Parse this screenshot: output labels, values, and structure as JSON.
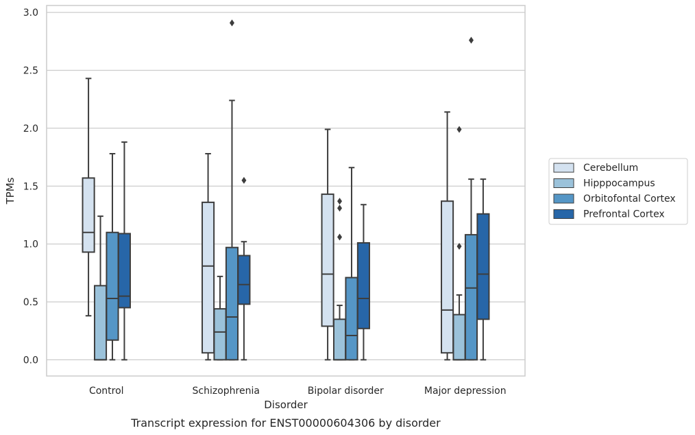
{
  "chart_data": {
    "type": "box",
    "title": "",
    "caption": "Transcript expression for ENST00000604306 by disorder",
    "xlabel": "Disorder",
    "ylabel": "TPMs",
    "ylim": [
      -0.14,
      3.06
    ],
    "yticks": [
      0.0,
      0.5,
      1.0,
      1.5,
      2.0,
      2.5,
      3.0
    ],
    "ytick_labels": [
      "0.0",
      "0.5",
      "1.0",
      "1.5",
      "2.0",
      "2.5",
      "3.0"
    ],
    "grid": "horizontal",
    "legend_position": "right",
    "categories": [
      "Control",
      "Schizophrenia",
      "Bipolar disorder",
      "Major depression"
    ],
    "series": [
      {
        "name": "Cerebellum",
        "color": "#d4e2f0",
        "boxes": [
          {
            "whislo": 0.38,
            "q1": 0.93,
            "med": 1.1,
            "q3": 1.57,
            "whishi": 2.43,
            "fliers": []
          },
          {
            "whislo": 0.0,
            "q1": 0.06,
            "med": 0.81,
            "q3": 1.36,
            "whishi": 1.78,
            "fliers": []
          },
          {
            "whislo": 0.0,
            "q1": 0.29,
            "med": 0.74,
            "q3": 1.43,
            "whishi": 1.99,
            "fliers": []
          },
          {
            "whislo": 0.0,
            "q1": 0.06,
            "med": 0.43,
            "q3": 1.37,
            "whishi": 2.14,
            "fliers": []
          }
        ]
      },
      {
        "name": "Hipppocampus",
        "color": "#9bc2da",
        "boxes": [
          {
            "whislo": 0.0,
            "q1": 0.0,
            "med": 0.0,
            "q3": 0.64,
            "whishi": 1.24,
            "fliers": []
          },
          {
            "whislo": 0.0,
            "q1": 0.0,
            "med": 0.24,
            "q3": 0.44,
            "whishi": 0.72,
            "fliers": []
          },
          {
            "whislo": 0.0,
            "q1": 0.0,
            "med": 0.0,
            "q3": 0.35,
            "whishi": 0.47,
            "fliers": [
              1.06,
              1.31,
              1.37
            ]
          },
          {
            "whislo": 0.0,
            "q1": 0.0,
            "med": 0.0,
            "q3": 0.39,
            "whishi": 0.56,
            "fliers": [
              0.98,
              1.99
            ]
          }
        ]
      },
      {
        "name": "Orbitofontal Cortex",
        "color": "#5596c6",
        "boxes": [
          {
            "whislo": 0.0,
            "q1": 0.17,
            "med": 0.53,
            "q3": 1.1,
            "whishi": 1.78,
            "fliers": []
          },
          {
            "whislo": 0.0,
            "q1": 0.0,
            "med": 0.37,
            "q3": 0.97,
            "whishi": 2.24,
            "fliers": [
              2.91
            ]
          },
          {
            "whislo": 0.0,
            "q1": 0.0,
            "med": 0.21,
            "q3": 0.71,
            "whishi": 1.66,
            "fliers": []
          },
          {
            "whislo": 0.0,
            "q1": 0.0,
            "med": 0.62,
            "q3": 1.08,
            "whishi": 1.56,
            "fliers": [
              2.76
            ]
          }
        ]
      },
      {
        "name": "Prefrontal Cortex",
        "color": "#2766a8",
        "boxes": [
          {
            "whislo": 0.0,
            "q1": 0.45,
            "med": 0.55,
            "q3": 1.09,
            "whishi": 1.88,
            "fliers": []
          },
          {
            "whislo": 0.0,
            "q1": 0.48,
            "med": 0.65,
            "q3": 0.9,
            "whishi": 1.02,
            "fliers": [
              1.55
            ]
          },
          {
            "whislo": 0.0,
            "q1": 0.27,
            "med": 0.53,
            "q3": 1.01,
            "whishi": 1.34,
            "fliers": []
          },
          {
            "whislo": 0.0,
            "q1": 0.35,
            "med": 0.74,
            "q3": 1.26,
            "whishi": 1.56,
            "fliers": []
          }
        ]
      }
    ]
  }
}
